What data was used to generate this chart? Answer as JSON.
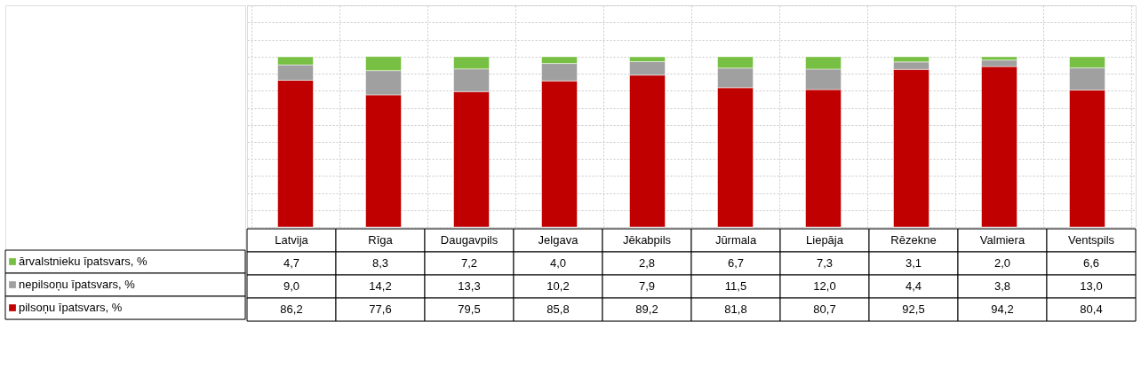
{
  "chart_data": {
    "type": "bar",
    "stacked": true,
    "grid": true,
    "legend": "left",
    "categories": [
      "Latvija",
      "Rīga",
      "Daugavpils",
      "Jelgava",
      "Jēkabpils",
      "Jūrmala",
      "Liepāja",
      "Rēzekne",
      "Valmiera",
      "Ventspils"
    ],
    "series": [
      {
        "name": "pilsoņu īpatsvars, %",
        "color": "#c00000",
        "values": [
          86.2,
          77.6,
          79.5,
          85.8,
          89.2,
          81.8,
          80.7,
          92.5,
          94.2,
          80.4
        ],
        "value_labels": [
          "86,2",
          "77,6",
          "79,5",
          "85,8",
          "89,2",
          "81,8",
          "80,7",
          "92,5",
          "94,2",
          "80,4"
        ]
      },
      {
        "name": "nepilsoņu īpatsvars, %",
        "color": "#a0a0a0",
        "values": [
          9.0,
          14.2,
          13.3,
          10.2,
          7.9,
          11.5,
          12.0,
          4.4,
          3.8,
          13.0
        ],
        "value_labels": [
          "9,0",
          "14,2",
          "13,3",
          "10,2",
          "7,9",
          "11,5",
          "12,0",
          "4,4",
          "3,8",
          "13,0"
        ]
      },
      {
        "name": "ārvalstnieku īpatsvars, %",
        "color": "#77c043",
        "values": [
          4.7,
          8.3,
          7.2,
          4.0,
          2.8,
          6.7,
          7.3,
          3.1,
          2.0,
          6.6
        ],
        "value_labels": [
          "4,7",
          "8,3",
          "7,2",
          "4,0",
          "2,8",
          "6,7",
          "7,3",
          "3,1",
          "2,0",
          "6,6"
        ]
      }
    ]
  }
}
